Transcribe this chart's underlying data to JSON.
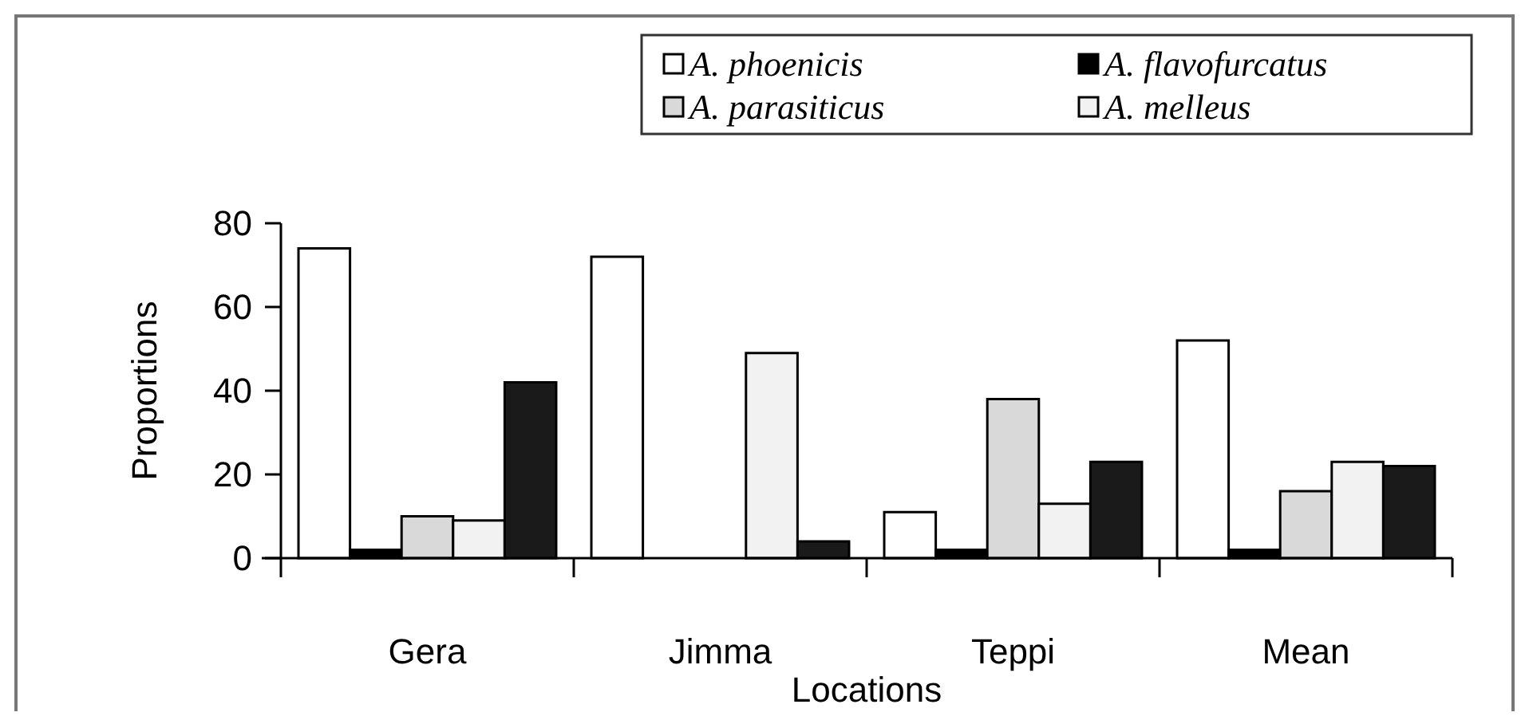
{
  "chart_data": {
    "type": "bar",
    "xlabel": "Locations",
    "ylabel": "Proportions",
    "categories": [
      "Gera",
      "Jimma",
      "Teppi",
      "Mean"
    ],
    "series": [
      {
        "name": "A. phoenicis",
        "color": "#ffffff",
        "values": [
          74,
          72,
          11,
          52
        ]
      },
      {
        "name": "A. flavofurcatus",
        "color": "#000000",
        "values": [
          2,
          0,
          2,
          2
        ]
      },
      {
        "name": "A. parasiticus",
        "color": "#d9d9d9",
        "values": [
          10,
          0,
          38,
          16
        ]
      },
      {
        "name": "A. melleus",
        "color": "#f2f2f2",
        "values": [
          9,
          49,
          13,
          23
        ]
      },
      {
        "color": "#1a1a1a",
        "values": [
          42,
          4,
          23,
          22
        ]
      }
    ],
    "ylim": [
      0,
      80
    ],
    "yticks": [
      0,
      20,
      40,
      60,
      80
    ],
    "legend": "top right",
    "grid": false
  }
}
